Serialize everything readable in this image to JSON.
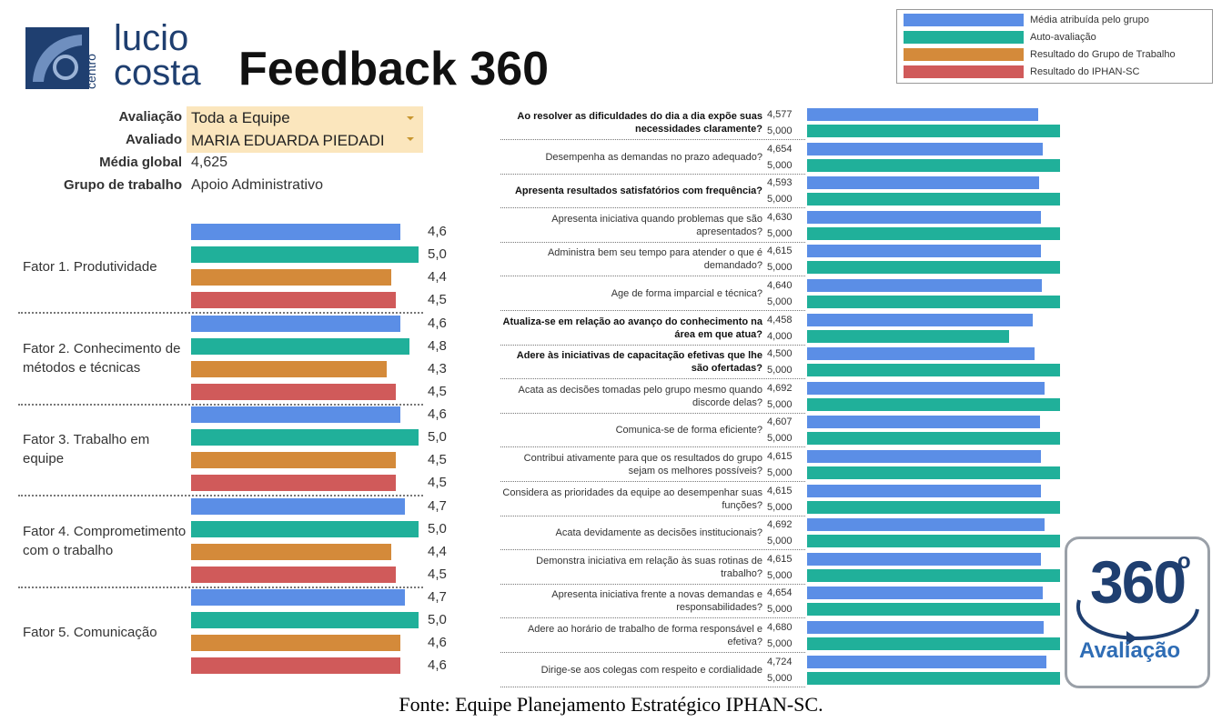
{
  "logo": {
    "small": "centro",
    "line1": "lucio",
    "line2": "costa"
  },
  "header": {
    "title": "Feedback 360"
  },
  "filters": [
    {
      "label": "Avaliação",
      "value": "Toda a Equipe"
    },
    {
      "label": "Avaliado",
      "value": "MARIA EDUARDA PIEDADI"
    },
    {
      "label": "Média global",
      "value": "4,625"
    },
    {
      "label": "Grupo de trabalho",
      "value": "Apoio Administrativo"
    }
  ],
  "chart_data": [
    {
      "type": "bar",
      "orientation": "horizontal",
      "categories": [
        "Fator 1. Produtividade",
        "Fator 2. Conhecimento de métodos e técnicas",
        "Fator 3. Trabalho em equipe",
        "Fator 4. Comprometimento com o trabalho",
        "Fator 5. Comunicação"
      ],
      "series": [
        {
          "name": "Média atribuída pelo grupo",
          "color": "#5b8ee6",
          "values": [
            4.6,
            4.6,
            4.6,
            4.7,
            4.7
          ],
          "value_labels": [
            "4,6",
            "4,6",
            "4,6",
            "4,7",
            "4,7"
          ]
        },
        {
          "name": "Auto-avaliação",
          "color": "#20b09a",
          "values": [
            5.0,
            4.8,
            5.0,
            5.0,
            5.0
          ],
          "value_labels": [
            "5,0",
            "4,8",
            "5,0",
            "5,0",
            "5,0"
          ]
        },
        {
          "name": "Resultado do Grupo de Trabalho",
          "color": "#d48a3a",
          "values": [
            4.4,
            4.3,
            4.5,
            4.4,
            4.6
          ],
          "value_labels": [
            "4,4",
            "4,3",
            "4,5",
            "4,4",
            "4,6"
          ]
        },
        {
          "name": "Resultado do IPHAN-SC",
          "color": "#d05a5a",
          "values": [
            4.5,
            4.5,
            4.5,
            4.5,
            4.6
          ],
          "value_labels": [
            "4,5",
            "4,5",
            "4,5",
            "4,5",
            "4,6"
          ]
        }
      ],
      "xlim": [
        0,
        5
      ],
      "legend": "top-right"
    },
    {
      "type": "bar",
      "orientation": "horizontal",
      "categories": [
        "Ao resolver as dificuldades do dia a dia expõe suas necessidades claramente?",
        "Desempenha as demandas no prazo adequado?",
        "Apresenta resultados satisfatórios com frequência?",
        "Apresenta iniciativa quando problemas que são apresentados?",
        "Administra bem seu tempo para atender o que é demandado?",
        "Age de forma imparcial e técnica?",
        "Atualiza-se em relação ao avanço do conhecimento na área em que atua?",
        "Adere às iniciativas de capacitação efetivas que lhe são ofertadas?",
        "Acata as decisões tomadas pelo grupo mesmo quando discorde delas?",
        "Comunica-se de forma eficiente?",
        "Contribui ativamente para que os resultados do grupo sejam os melhores possíveis?",
        "Considera as prioridades da equipe ao desempenhar suas funções?",
        "Acata devidamente as decisões institucionais?",
        "Demonstra iniciativa em relação às suas rotinas de trabalho?",
        "Apresenta iniciativa frente a novas demandas e responsabilidades?",
        "Adere ao horário de trabalho de forma responsável e efetiva?",
        "Dirige-se aos colegas com respeito e cordialidade"
      ],
      "series": [
        {
          "color": "#5b8ee6",
          "values": [
            4.577,
            4.654,
            4.593,
            4.63,
            4.615,
            4.64,
            4.458,
            4.5,
            4.692,
            4.607,
            4.615,
            4.615,
            4.692,
            4.615,
            4.654,
            4.68,
            4.724
          ],
          "value_labels": [
            "4,577",
            "4,654",
            "4,593",
            "4,630",
            "4,615",
            "4,640",
            "4,458",
            "4,500",
            "4,692",
            "4,607",
            "4,615",
            "4,615",
            "4,692",
            "4,615",
            "4,654",
            "4,680",
            "4,724"
          ]
        },
        {
          "color": "#20b09a",
          "values": [
            5,
            5,
            5,
            5,
            5,
            5,
            4,
            5,
            5,
            5,
            5,
            5,
            5,
            5,
            5,
            5,
            5
          ],
          "value_labels": [
            "5,000",
            "5,000",
            "5,000",
            "5,000",
            "5,000",
            "5,000",
            "4,000",
            "5,000",
            "5,000",
            "5,000",
            "5,000",
            "5,000",
            "5,000",
            "5,000",
            "5,000",
            "5,000",
            "5,000"
          ]
        }
      ],
      "xlim": [
        0,
        5
      ]
    }
  ],
  "badge": {
    "number": "360",
    "degree": "o",
    "label": "Avaliação"
  },
  "source": "Fonte: Equipe Planejamento Estratégico IPHAN-SC."
}
